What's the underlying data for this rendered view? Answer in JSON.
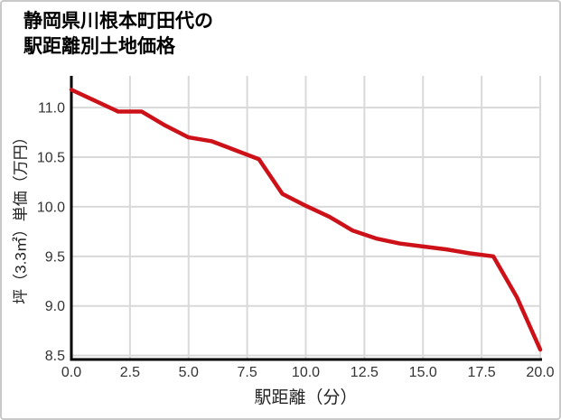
{
  "window": {
    "background": "#ffffff",
    "border_color": "#c9c9c9"
  },
  "title": {
    "line1": "静岡県川根本町田代の",
    "line2": "駅距離別土地価格"
  },
  "chart_data": {
    "type": "line",
    "title": "静岡県川根本町田代の駅距離別土地価格",
    "xlabel": "駅距離（分）",
    "ylabel": "坪（3.3㎡）単価（万円）",
    "x": [
      0,
      1,
      2,
      3,
      4,
      5,
      6,
      7,
      8,
      9,
      10,
      11,
      12,
      13,
      14,
      15,
      16,
      17,
      18,
      19,
      20
    ],
    "y": [
      11.18,
      11.07,
      10.96,
      10.96,
      10.82,
      10.7,
      10.66,
      10.57,
      10.48,
      10.13,
      10.01,
      9.9,
      9.76,
      9.68,
      9.63,
      9.6,
      9.57,
      9.53,
      9.5,
      9.09,
      8.56
    ],
    "xlim": [
      0,
      20
    ],
    "ylim": [
      8.46,
      11.32
    ],
    "xticks": {
      "values": [
        0,
        2.5,
        5,
        7.5,
        10,
        12.5,
        15,
        17.5,
        20
      ],
      "labels": [
        "0.0",
        "2.5",
        "5.0",
        "7.5",
        "10.0",
        "12.5",
        "15.0",
        "17.5",
        "20.0"
      ]
    },
    "yticks": {
      "values": [
        8.5,
        9.0,
        9.5,
        10.0,
        10.5,
        11.0
      ],
      "labels": [
        "8.5",
        "9.0",
        "9.5",
        "10.0",
        "10.5",
        "11.0"
      ]
    },
    "grid": true,
    "legend": false,
    "line_color": "#cd1119",
    "grid_color": "#d9d9d9",
    "axis_color": "#000000",
    "tick_label_color": "#333333"
  }
}
